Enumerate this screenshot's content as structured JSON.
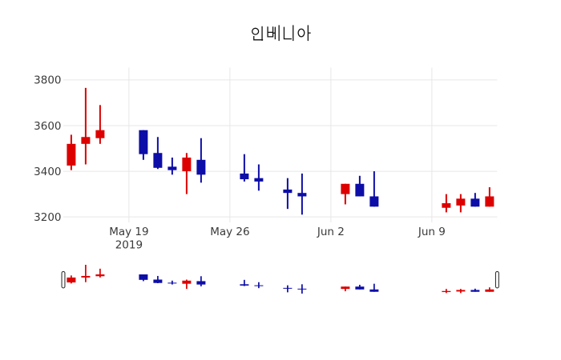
{
  "chart_data": {
    "type": "candlestick",
    "title": "인베니아",
    "xlabel": "",
    "ylabel": "",
    "grid": true,
    "legend": "none",
    "increasing_color": "#dd0000",
    "decreasing_color": "#0d0da8",
    "background_color": "#ffffff",
    "gridline_color": "#e7e7e7",
    "x": [
      "2019-05-15",
      "2019-05-16",
      "2019-05-17",
      "2019-05-20",
      "2019-05-21",
      "2019-05-22",
      "2019-05-23",
      "2019-05-24",
      "2019-05-27",
      "2019-05-28",
      "2019-05-30",
      "2019-05-31",
      "2019-06-03",
      "2019-06-04",
      "2019-06-05",
      "2019-06-10",
      "2019-06-11",
      "2019-06-12",
      "2019-06-13"
    ],
    "open": [
      3425,
      3520,
      3545,
      3580,
      3480,
      3420,
      3400,
      3450,
      3390,
      3370,
      3320,
      3305,
      3300,
      3345,
      3290,
      3240,
      3250,
      3280,
      3245
    ],
    "high": [
      3560,
      3765,
      3690,
      3580,
      3550,
      3460,
      3480,
      3545,
      3475,
      3430,
      3370,
      3390,
      3345,
      3380,
      3400,
      3300,
      3300,
      3305,
      3330
    ],
    "low": [
      3405,
      3430,
      3520,
      3450,
      3410,
      3385,
      3300,
      3350,
      3355,
      3315,
      3235,
      3210,
      3255,
      3290,
      3245,
      3220,
      3220,
      3245,
      3245
    ],
    "close": [
      3520,
      3550,
      3580,
      3475,
      3415,
      3405,
      3460,
      3385,
      3365,
      3355,
      3305,
      3290,
      3345,
      3290,
      3245,
      3260,
      3280,
      3245,
      3290
    ],
    "yaxis": {
      "ticks": [
        "3200",
        "3400",
        "3600",
        "3800"
      ],
      "tick_values": [
        3200,
        3400,
        3600,
        3800
      ],
      "range": [
        3176,
        3854
      ]
    },
    "xaxis": {
      "ticks": [
        {
          "label": "May 19",
          "sublabel": "2019",
          "date": "2019-05-19"
        },
        {
          "label": "May 26",
          "sublabel": "",
          "date": "2019-05-26"
        },
        {
          "label": "Jun 2",
          "sublabel": "",
          "date": "2019-06-02"
        },
        {
          "label": "Jun 9",
          "sublabel": "",
          "date": "2019-06-09"
        }
      ],
      "range_day_offsets": [
        -0.55,
        29.53
      ]
    },
    "rangeslider": {
      "visible": true,
      "value_range": [
        3210,
        3765
      ]
    }
  }
}
